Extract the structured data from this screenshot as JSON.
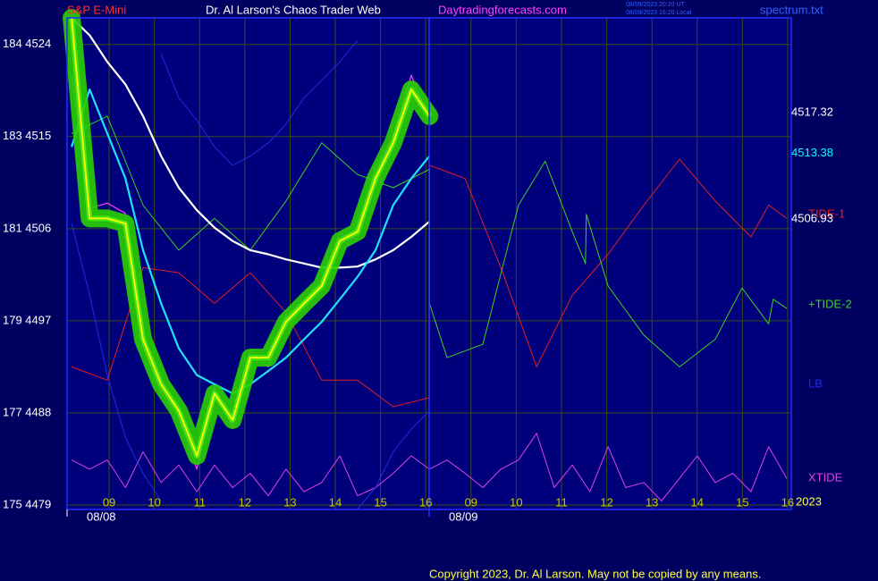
{
  "chart_data": {
    "type": "line",
    "title": "Dr. Al Larson's Chaos Trader Web",
    "subtitle": "S&P E-Mini",
    "website": "Daytradingforecasts.com",
    "timestamps": [
      "08/09/2023 20:20 UT",
      "08/09/2023 16:20 Local"
    ],
    "file": "spectrum.txt",
    "dates": [
      "08/08",
      "08/09"
    ],
    "year": "2023",
    "copyright": "Copyright 2023, Dr. Al Larson. May not be copied by any means.",
    "price_labels": [
      {
        "value": 4517.32,
        "color": "#ffffff"
      },
      {
        "value": 4513.38,
        "color": "#00ffff"
      },
      {
        "value": 4506.93,
        "color": "#ffffff"
      }
    ],
    "xlim": [
      -0.93,
      15.08
    ],
    "xticks": [
      {
        "value": 0,
        "label": "09"
      },
      {
        "value": 1,
        "label": "10"
      },
      {
        "value": 2,
        "label": "11"
      },
      {
        "value": 3,
        "label": "12"
      },
      {
        "value": 4,
        "label": "13"
      },
      {
        "value": 5,
        "label": "14"
      },
      {
        "value": 6,
        "label": "15"
      },
      {
        "value": 7,
        "label": "16"
      },
      {
        "value": 8,
        "label": "09"
      },
      {
        "value": 9,
        "label": "10"
      },
      {
        "value": 10,
        "label": "11"
      },
      {
        "value": 11,
        "label": "12"
      },
      {
        "value": 12,
        "label": "13"
      },
      {
        "value": 13,
        "label": "14"
      },
      {
        "value": 14,
        "label": "15"
      },
      {
        "value": 15,
        "label": "16"
      }
    ],
    "ylim": [
      4478.56,
      4526.6
    ],
    "yticks": [
      {
        "value": 4524,
        "label": "184 4524"
      },
      {
        "value": 4515,
        "label": "183 4515"
      },
      {
        "value": 4506,
        "label": "181 4506"
      },
      {
        "value": 4497,
        "label": "179 4497"
      },
      {
        "value": 4488,
        "label": "177 4488"
      },
      {
        "value": 4479,
        "label": "175 4479"
      }
    ],
    "grid": true,
    "series": [
      {
        "name": "TIDE-1",
        "color": "#e02020",
        "x": [
          -0.83,
          -0.04,
          0.75,
          1.54,
          2.33,
          3.12,
          3.91,
          4.7,
          5.49,
          6.28,
          7.08,
          7.08,
          7.87,
          8.66,
          9.45,
          10.24,
          11.03,
          11.82,
          12.61,
          13.4,
          14.19,
          14.58,
          14.98
        ],
        "values": [
          4492.5,
          4491.2,
          4502.2,
          4501.7,
          4498.7,
          4501.7,
          4497.8,
          4491.2,
          4491.2,
          4488.6,
          4489.5,
          4512.2,
          4510.9,
          4502.2,
          4492.5,
          4499.5,
          4503.5,
          4508.3,
          4512.8,
          4508.7,
          4505.2,
          4508.3,
          4507.0
        ]
      },
      {
        "name": "+TIDE-2",
        "color": "#40d020",
        "x": [
          -0.83,
          -0.04,
          0.75,
          1.54,
          2.33,
          3.12,
          3.91,
          4.7,
          5.49,
          6.28,
          7.08,
          7.08,
          7.47,
          8.26,
          9.05,
          9.64,
          10.24,
          10.53,
          10.55,
          11.03,
          11.82,
          12.61,
          13.4,
          13.99,
          14.58,
          14.68,
          14.98
        ],
        "values": [
          4515.3,
          4517.0,
          4508.3,
          4503.9,
          4507.0,
          4503.9,
          4508.7,
          4514.4,
          4511.3,
          4510.0,
          4511.8,
          4498.7,
          4493.4,
          4494.7,
          4508.3,
          4512.6,
          4505.7,
          4502.6,
          4507.4,
          4500.4,
          4495.6,
          4492.5,
          4495.2,
          4500.2,
          4496.7,
          4499.1,
          4498.2
        ]
      },
      {
        "name": "XTIDE",
        "color": "#e040e0",
        "x": [
          -0.83,
          -0.43,
          -0.04,
          0.36,
          0.75,
          1.15,
          1.54,
          1.94,
          2.33,
          2.73,
          3.12,
          3.52,
          3.91,
          4.31,
          4.7,
          5.1,
          5.49,
          5.89,
          6.28,
          6.68,
          7.08,
          7.47,
          7.87,
          8.26,
          8.66,
          9.05,
          9.45,
          9.84,
          10.24,
          10.63,
          11.03,
          11.42,
          11.82,
          12.21,
          12.61,
          13.0,
          13.4,
          13.79,
          14.19,
          14.58,
          14.98
        ],
        "values": [
          4483.4,
          4482.5,
          4483.4,
          4480.7,
          4484.2,
          4481.2,
          4482.9,
          4480.3,
          4482.9,
          4480.7,
          4482.1,
          4479.9,
          4482.5,
          4480.3,
          4481.2,
          4483.8,
          4479.9,
          4480.7,
          4482.1,
          4483.8,
          4482.5,
          4483.4,
          4482.1,
          4480.7,
          4482.5,
          4483.4,
          4486.0,
          4480.7,
          4482.9,
          4480.3,
          4484.7,
          4480.7,
          4481.2,
          4479.4,
          4481.6,
          4483.8,
          4481.2,
          4482.1,
          4480.3,
          4484.7,
          4481.6
        ]
      },
      {
        "color": "#1a2ee0",
        "x": [
          1.15,
          1.54,
          1.94,
          2.33,
          2.73,
          3.12,
          3.52,
          3.91,
          4.31,
          4.7,
          5.1,
          5.49
        ],
        "values": [
          4523.1,
          4518.8,
          4516.6,
          4514.0,
          4512.2,
          4513.1,
          4514.4,
          4516.2,
          4518.8,
          4520.5,
          4522.3,
          4524.4
        ]
      },
      {
        "name": "LB",
        "color": "#1a2ee0",
        "x": [
          -0.83,
          -0.43,
          -0.04,
          0.36,
          0.75,
          1.15,
          1.54,
          1.94,
          2.33,
          2.73,
          3.12,
          3.52,
          3.91,
          4.31,
          4.7,
          5.1,
          5.49,
          5.89,
          6.28,
          6.68,
          7.08
        ],
        "values": [
          4506.5,
          4499.5,
          4491.7,
          4485.6,
          4482.1,
          4479.4,
          null,
          null,
          null,
          null,
          null,
          null,
          null,
          null,
          null,
          null,
          4478.6,
          4480.7,
          4484.2,
          4486.4,
          4488.2
        ]
      },
      {
        "color": "#ffffff",
        "x": [
          -0.83,
          -0.43,
          -0.04,
          0.36,
          0.75,
          1.15,
          1.54,
          1.94,
          2.33,
          2.73,
          3.12,
          3.52,
          3.91,
          4.31,
          4.7,
          5.1,
          5.49,
          5.89,
          6.28,
          6.68,
          7.08
        ],
        "values": [
          4526.6,
          4524.9,
          4522.3,
          4520.1,
          4517.0,
          4513.1,
          4510.0,
          4507.8,
          4506.1,
          4504.8,
          4503.9,
          4503.5,
          4503.0,
          4502.6,
          4502.2,
          4502.2,
          4502.3,
          4503.0,
          4503.9,
          4505.2,
          4506.7
        ]
      },
      {
        "color": "#20e0ff",
        "x": [
          -0.83,
          -0.43,
          -0.04,
          0.36,
          0.75,
          1.15,
          1.54,
          1.94,
          2.33,
          2.73,
          3.12,
          3.52,
          3.91,
          4.31,
          4.7,
          5.1,
          5.49,
          5.89,
          6.28,
          6.68,
          7.08
        ],
        "values": [
          4514.0,
          4519.6,
          4515.3,
          4510.9,
          4503.9,
          4498.7,
          4494.3,
          4491.7,
          4490.8,
          4489.9,
          4490.8,
          4492.1,
          4493.4,
          4495.2,
          4496.9,
          4499.1,
          4501.3,
          4503.9,
          4508.3,
          4510.9,
          4513.1
        ]
      },
      {
        "color": "#ff40ff",
        "x": [
          -0.83,
          -0.43,
          -0.04,
          0.36,
          0.75,
          1.15,
          1.54,
          1.94,
          2.33,
          2.73,
          3.12,
          3.52,
          3.91,
          4.31,
          4.7,
          5.1,
          5.49,
          5.89,
          6.28,
          6.68,
          7.08
        ],
        "values": [
          4521.0,
          4508.0,
          4508.5,
          4507.5,
          4494.5,
          4490.0,
          4487.5,
          4482.5,
          4490.5,
          4486.5,
          4494.0,
          4492.5,
          4497.5,
          4499.0,
          4501.0,
          4505.5,
          4505.0,
          4512.0,
          4515.0,
          4521.0,
          4516.5
        ]
      },
      {
        "color": "#ffff00",
        "x": [
          -0.83,
          -0.43,
          -0.04,
          0.36,
          0.75,
          1.15,
          1.54,
          1.94,
          2.33,
          2.73,
          3.12,
          3.52,
          3.91,
          4.31,
          4.7,
          5.1,
          5.49,
          5.89,
          6.28,
          6.68,
          7.08
        ],
        "values": [
          4526.6,
          4507.0,
          4507.0,
          4506.5,
          4495.2,
          4490.8,
          4488.2,
          4483.8,
          4489.9,
          4487.3,
          4493.4,
          4493.4,
          4496.9,
          4498.7,
          4500.4,
          4504.8,
          4505.7,
          4510.9,
          4514.4,
          4519.6,
          4517.0
        ]
      }
    ]
  }
}
